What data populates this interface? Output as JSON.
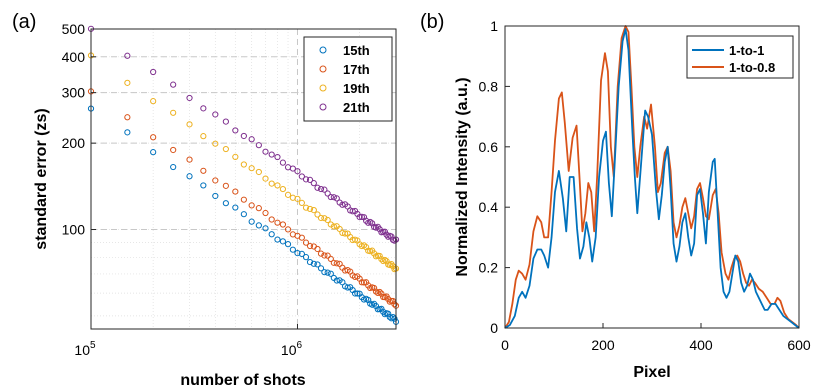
{
  "chart_data": [
    {
      "panel_label": "(a)",
      "type": "scatter",
      "xlabel": "number of shots",
      "ylabel": "standard error (zs)",
      "xscale": "log",
      "yscale": "log",
      "xlim": [
        100000,
        3000000
      ],
      "ylim": [
        45,
        500
      ],
      "x_ticks": [
        {
          "value": 100000,
          "base": "10",
          "exp": "5"
        },
        {
          "value": 1000000,
          "base": "10",
          "exp": "6"
        }
      ],
      "y_ticks": [
        {
          "value": 100,
          "label": "100"
        },
        {
          "value": 200,
          "label": "200"
        },
        {
          "value": 300,
          "label": "300"
        },
        {
          "value": 400,
          "label": "400"
        },
        {
          "value": 500,
          "label": "500"
        }
      ],
      "grid": true,
      "legend_position": "top-right",
      "series": [
        {
          "name": "15th",
          "color": "#0072BD",
          "y_at_1e5": 264,
          "exponent": -0.5
        },
        {
          "name": "17th",
          "color": "#D95319",
          "y_at_1e5": 300,
          "exponent": -0.5
        },
        {
          "name": "19th",
          "color": "#EDB120",
          "y_at_1e5": 400,
          "exponent": -0.5
        },
        {
          "name": "21th",
          "color": "#7E2F8E",
          "y_at_1e5": 500,
          "exponent": -0.5
        }
      ],
      "x_points": [
        100000,
        150000,
        200000,
        250000,
        300000,
        350000,
        400000,
        450000,
        500000,
        550000,
        600000,
        650000,
        700000,
        750000,
        800000,
        850000,
        900000,
        950000,
        1000000,
        1050000,
        1100000,
        1150000,
        1200000,
        1250000,
        1300000,
        1350000,
        1400000,
        1450000,
        1500000,
        1550000,
        1600000,
        1650000,
        1700000,
        1750000,
        1800000,
        1850000,
        1900000,
        1950000,
        2000000,
        2050000,
        2100000,
        2150000,
        2200000,
        2250000,
        2300000,
        2350000,
        2400000,
        2450000,
        2500000,
        2550000,
        2600000,
        2650000,
        2700000,
        2750000,
        2800000,
        2850000,
        2900000,
        2950000,
        3000000
      ]
    },
    {
      "panel_label": "(b)",
      "type": "line",
      "xlabel": "Pixel",
      "ylabel": "Normalized Intensity (a.u.)",
      "xlim": [
        0,
        600
      ],
      "ylim": [
        0,
        1
      ],
      "x_ticks": [
        0,
        200,
        400,
        600
      ],
      "y_ticks": [
        0,
        0.2,
        0.4,
        0.6,
        0.8,
        1
      ],
      "y_tick_labels": [
        "0",
        "0.2",
        "0.4",
        "0.6",
        "0.8",
        "1"
      ],
      "legend_position": "top-right",
      "series": [
        {
          "name": "1-to-1",
          "color": "#0072BD",
          "points": [
            [
              0,
              0
            ],
            [
              10,
              0.01
            ],
            [
              20,
              0.04
            ],
            [
              28,
              0.1
            ],
            [
              35,
              0.12
            ],
            [
              42,
              0.1
            ],
            [
              50,
              0.14
            ],
            [
              58,
              0.23
            ],
            [
              66,
              0.26
            ],
            [
              74,
              0.26
            ],
            [
              80,
              0.24
            ],
            [
              88,
              0.2
            ],
            [
              95,
              0.3
            ],
            [
              102,
              0.45
            ],
            [
              110,
              0.52
            ],
            [
              118,
              0.43
            ],
            [
              125,
              0.32
            ],
            [
              132,
              0.5
            ],
            [
              140,
              0.5
            ],
            [
              147,
              0.33
            ],
            [
              153,
              0.23
            ],
            [
              160,
              0.27
            ],
            [
              166,
              0.35
            ],
            [
              172,
              0.3
            ],
            [
              178,
              0.22
            ],
            [
              185,
              0.3
            ],
            [
              192,
              0.5
            ],
            [
              200,
              0.62
            ],
            [
              206,
              0.65
            ],
            [
              212,
              0.48
            ],
            [
              218,
              0.37
            ],
            [
              224,
              0.55
            ],
            [
              232,
              0.8
            ],
            [
              240,
              0.95
            ],
            [
              246,
              0.99
            ],
            [
              252,
              0.92
            ],
            [
              260,
              0.65
            ],
            [
              265,
              0.5
            ],
            [
              270,
              0.38
            ],
            [
              278,
              0.55
            ],
            [
              286,
              0.72
            ],
            [
              292,
              0.7
            ],
            [
              300,
              0.64
            ],
            [
              308,
              0.46
            ],
            [
              314,
              0.36
            ],
            [
              320,
              0.44
            ],
            [
              326,
              0.55
            ],
            [
              332,
              0.6
            ],
            [
              338,
              0.46
            ],
            [
              344,
              0.28
            ],
            [
              350,
              0.22
            ],
            [
              356,
              0.27
            ],
            [
              362,
              0.35
            ],
            [
              368,
              0.38
            ],
            [
              374,
              0.3
            ],
            [
              380,
              0.24
            ],
            [
              386,
              0.28
            ],
            [
              392,
              0.44
            ],
            [
              398,
              0.46
            ],
            [
              404,
              0.38
            ],
            [
              410,
              0.28
            ],
            [
              416,
              0.45
            ],
            [
              424,
              0.55
            ],
            [
              428,
              0.56
            ],
            [
              434,
              0.38
            ],
            [
              440,
              0.2
            ],
            [
              446,
              0.12
            ],
            [
              452,
              0.1
            ],
            [
              458,
              0.12
            ],
            [
              464,
              0.18
            ],
            [
              470,
              0.24
            ],
            [
              476,
              0.22
            ],
            [
              482,
              0.15
            ],
            [
              488,
              0.12
            ],
            [
              494,
              0.14
            ],
            [
              500,
              0.18
            ],
            [
              506,
              0.16
            ],
            [
              512,
              0.12
            ],
            [
              518,
              0.1
            ],
            [
              524,
              0.08
            ],
            [
              530,
              0.06
            ],
            [
              536,
              0.06
            ],
            [
              544,
              0.08
            ],
            [
              552,
              0.08
            ],
            [
              560,
              0.06
            ],
            [
              568,
              0.04
            ],
            [
              576,
              0.03
            ],
            [
              584,
              0.02
            ],
            [
              592,
              0.01
            ],
            [
              600,
              0
            ]
          ]
        },
        {
          "name": "1-to-0.8",
          "color": "#D95319",
          "points": [
            [
              0,
              0
            ],
            [
              8,
              0.02
            ],
            [
              15,
              0.08
            ],
            [
              22,
              0.16
            ],
            [
              28,
              0.19
            ],
            [
              35,
              0.18
            ],
            [
              42,
              0.16
            ],
            [
              50,
              0.21
            ],
            [
              58,
              0.32
            ],
            [
              66,
              0.37
            ],
            [
              74,
              0.35
            ],
            [
              80,
              0.3
            ],
            [
              88,
              0.3
            ],
            [
              95,
              0.45
            ],
            [
              102,
              0.62
            ],
            [
              110,
              0.76
            ],
            [
              116,
              0.78
            ],
            [
              122,
              0.68
            ],
            [
              130,
              0.52
            ],
            [
              138,
              0.63
            ],
            [
              146,
              0.67
            ],
            [
              152,
              0.5
            ],
            [
              158,
              0.32
            ],
            [
              164,
              0.38
            ],
            [
              170,
              0.48
            ],
            [
              176,
              0.45
            ],
            [
              182,
              0.32
            ],
            [
              188,
              0.5
            ],
            [
              196,
              0.82
            ],
            [
              204,
              0.91
            ],
            [
              210,
              0.85
            ],
            [
              216,
              0.6
            ],
            [
              222,
              0.5
            ],
            [
              230,
              0.8
            ],
            [
              238,
              0.96
            ],
            [
              246,
              1.0
            ],
            [
              252,
              0.98
            ],
            [
              258,
              0.8
            ],
            [
              264,
              0.6
            ],
            [
              270,
              0.5
            ],
            [
              276,
              0.6
            ],
            [
              284,
              0.7
            ],
            [
              290,
              0.66
            ],
            [
              298,
              0.74
            ],
            [
              306,
              0.6
            ],
            [
              312,
              0.45
            ],
            [
              318,
              0.48
            ],
            [
              326,
              0.58
            ],
            [
              332,
              0.6
            ],
            [
              338,
              0.52
            ],
            [
              344,
              0.35
            ],
            [
              350,
              0.3
            ],
            [
              356,
              0.34
            ],
            [
              362,
              0.4
            ],
            [
              368,
              0.43
            ],
            [
              374,
              0.38
            ],
            [
              380,
              0.33
            ],
            [
              386,
              0.37
            ],
            [
              392,
              0.46
            ],
            [
              398,
              0.48
            ],
            [
              404,
              0.43
            ],
            [
              410,
              0.37
            ],
            [
              416,
              0.36
            ],
            [
              424,
              0.44
            ],
            [
              430,
              0.46
            ],
            [
              436,
              0.38
            ],
            [
              442,
              0.25
            ],
            [
              450,
              0.18
            ],
            [
              456,
              0.16
            ],
            [
              462,
              0.2
            ],
            [
              468,
              0.23
            ],
            [
              474,
              0.24
            ],
            [
              480,
              0.22
            ],
            [
              486,
              0.18
            ],
            [
              492,
              0.15
            ],
            [
              498,
              0.14
            ],
            [
              504,
              0.16
            ],
            [
              510,
              0.15
            ],
            [
              518,
              0.13
            ],
            [
              526,
              0.12
            ],
            [
              534,
              0.1
            ],
            [
              542,
              0.08
            ],
            [
              550,
              0.08
            ],
            [
              556,
              0.1
            ],
            [
              562,
              0.09
            ],
            [
              570,
              0.05
            ],
            [
              578,
              0.03
            ],
            [
              586,
              0.02
            ],
            [
              594,
              0.01
            ],
            [
              600,
              0
            ]
          ]
        }
      ]
    }
  ]
}
